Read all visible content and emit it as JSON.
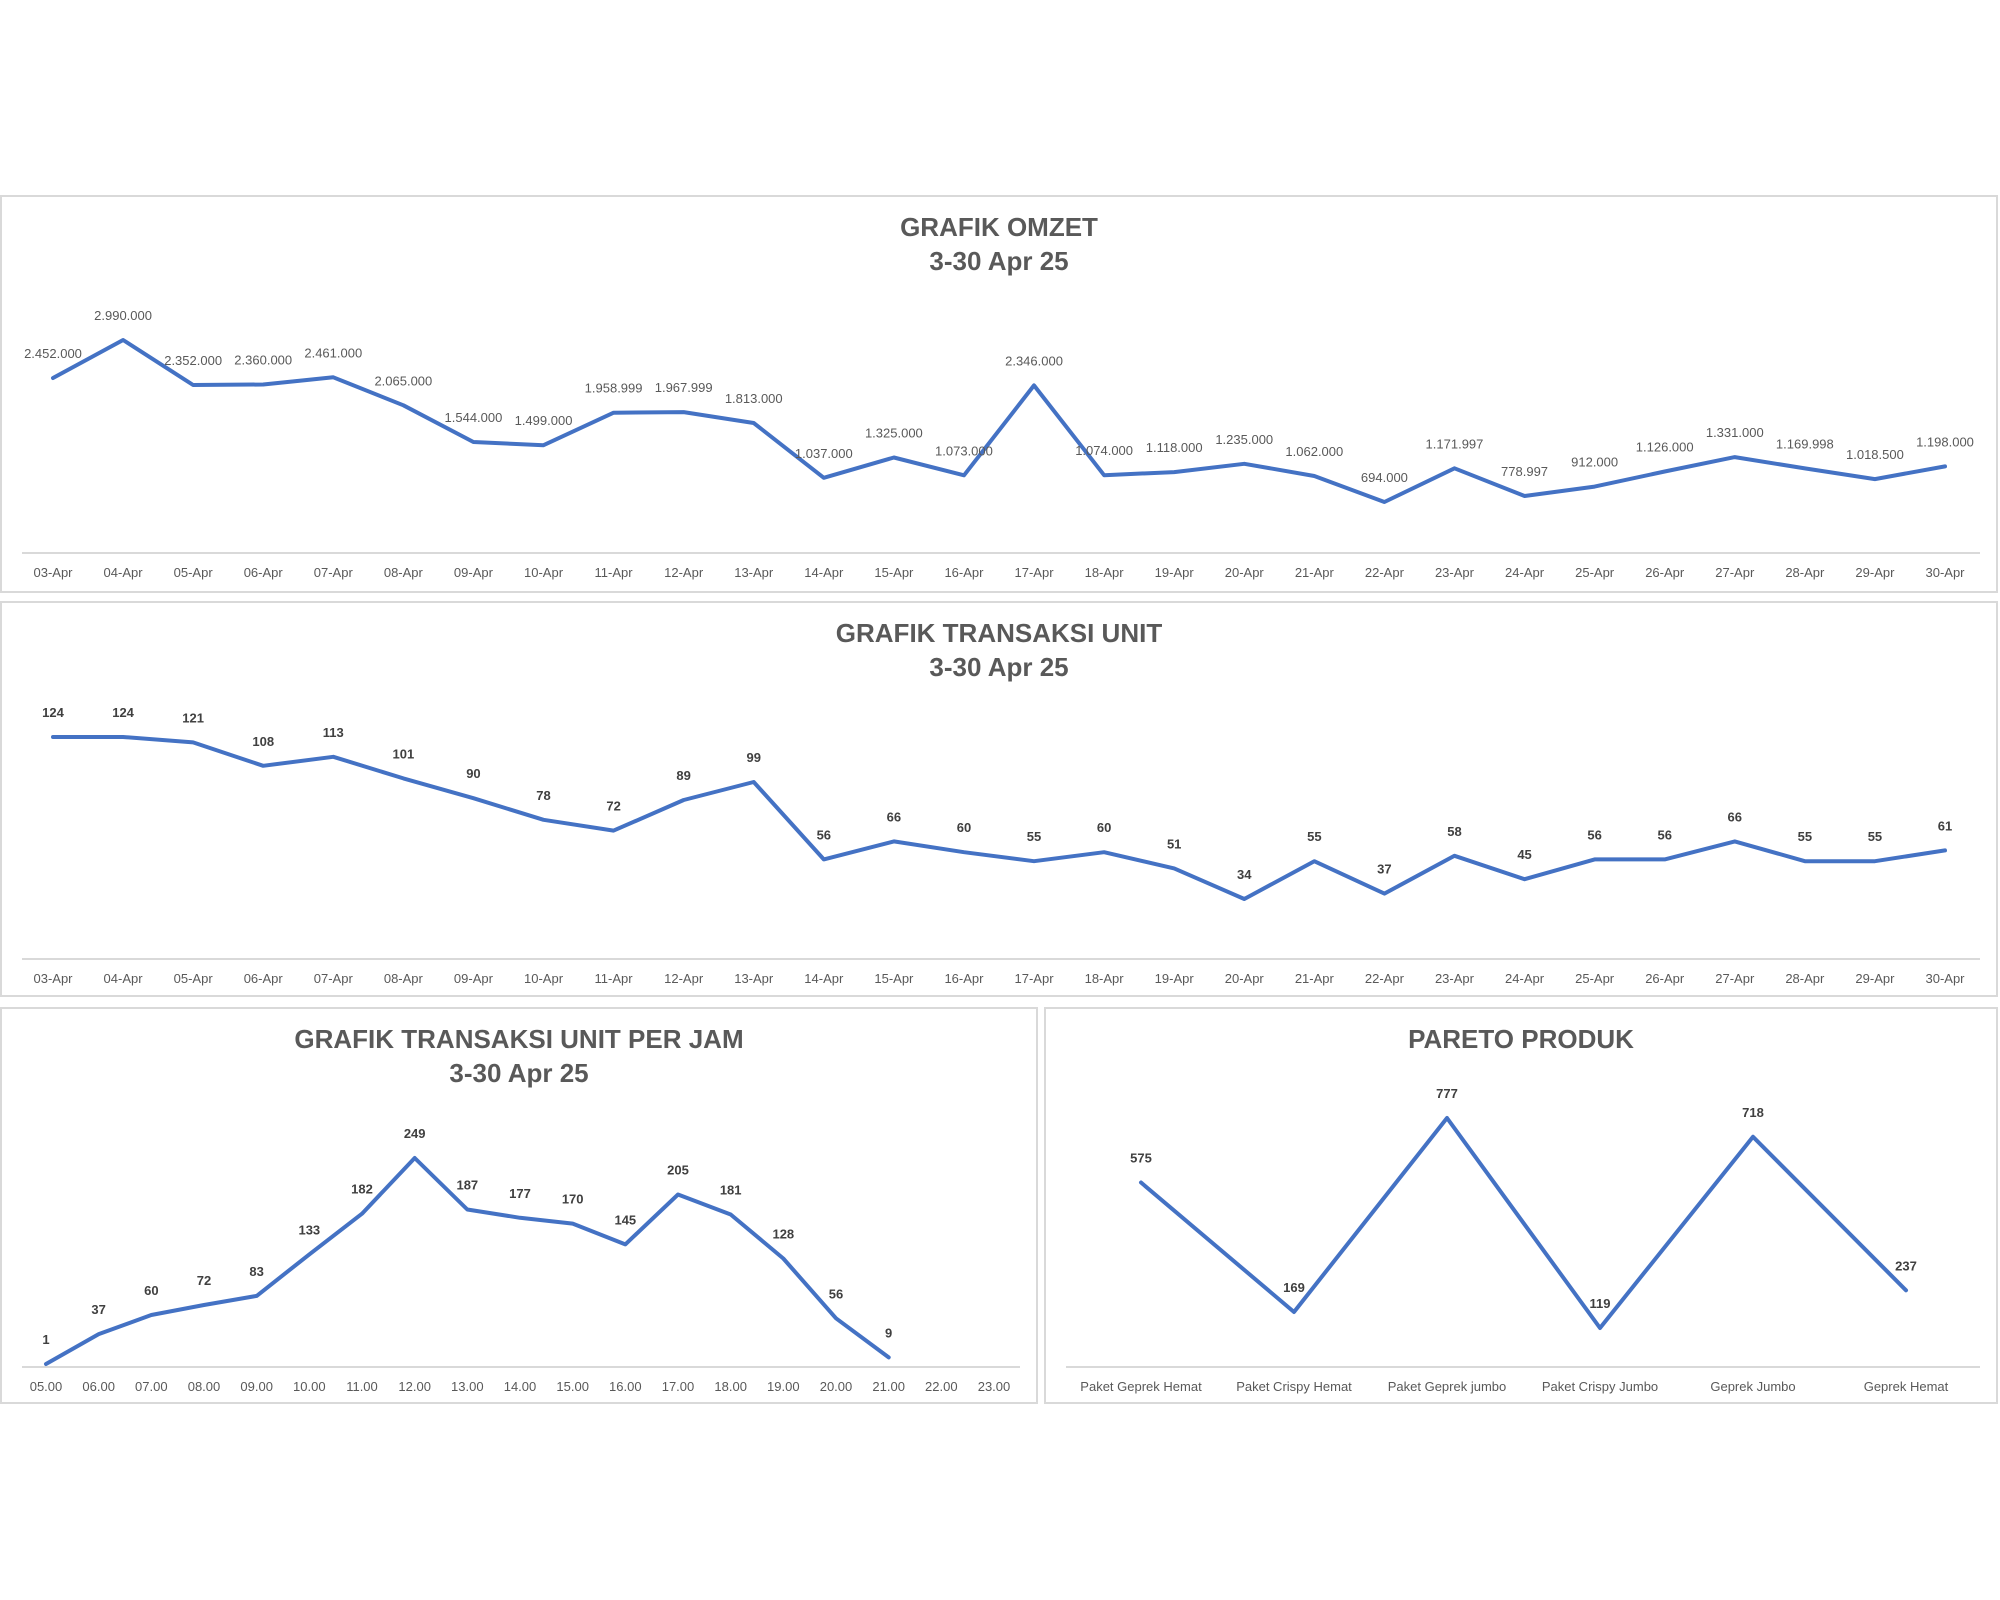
{
  "colors": {
    "line": "#4472c4",
    "text": "#595959",
    "border": "#d9d9d9",
    "axis": "#d9d9d9"
  },
  "chart_data": [
    {
      "id": "omzet",
      "type": "line",
      "title": "GRAFIK OMZET",
      "subtitle": "3-30 Apr 25",
      "label_style": "normal",
      "categories": [
        "03-Apr",
        "04-Apr",
        "05-Apr",
        "06-Apr",
        "07-Apr",
        "08-Apr",
        "09-Apr",
        "10-Apr",
        "11-Apr",
        "12-Apr",
        "13-Apr",
        "14-Apr",
        "15-Apr",
        "16-Apr",
        "17-Apr",
        "18-Apr",
        "19-Apr",
        "20-Apr",
        "21-Apr",
        "22-Apr",
        "23-Apr",
        "24-Apr",
        "25-Apr",
        "26-Apr",
        "27-Apr",
        "28-Apr",
        "29-Apr",
        "30-Apr"
      ],
      "values": [
        2452000,
        2990000,
        2352000,
        2360000,
        2461000,
        2065000,
        1544000,
        1499000,
        1958999,
        1967999,
        1813000,
        1037000,
        1325000,
        1073000,
        2346000,
        1074000,
        1118000,
        1235000,
        1062000,
        694000,
        1171997,
        778997,
        912000,
        1126000,
        1331000,
        1169998,
        1018500,
        1198000
      ],
      "data_labels": [
        "2.452.000",
        "2.990.000",
        "2.352.000",
        "2.360.000",
        "2.461.000",
        "2.065.000",
        "1.544.000",
        "1.499.000",
        "1.958.999",
        "1.967.999",
        "1.813.000",
        "1.037.000",
        "1.325.000",
        "1.073.000",
        "2.346.000",
        "1.074.000",
        "1.118.000",
        "1.235.000",
        "1.062.000",
        "694.000",
        "1.171.997",
        "778.997",
        "912.000",
        "1.126.000",
        "1.331.000",
        "1.169.998",
        "1.018.500",
        "1.198.000"
      ],
      "xlabel": "",
      "ylabel": "",
      "legend": "none",
      "grid": false
    },
    {
      "id": "transaksi-unit",
      "type": "line",
      "title": "GRAFIK TRANSAKSI UNIT",
      "subtitle": "3-30 Apr 25",
      "label_style": "bold",
      "categories": [
        "03-Apr",
        "04-Apr",
        "05-Apr",
        "06-Apr",
        "07-Apr",
        "08-Apr",
        "09-Apr",
        "10-Apr",
        "11-Apr",
        "12-Apr",
        "13-Apr",
        "14-Apr",
        "15-Apr",
        "16-Apr",
        "17-Apr",
        "18-Apr",
        "19-Apr",
        "20-Apr",
        "21-Apr",
        "22-Apr",
        "23-Apr",
        "24-Apr",
        "25-Apr",
        "26-Apr",
        "27-Apr",
        "28-Apr",
        "29-Apr",
        "30-Apr"
      ],
      "values": [
        124,
        124,
        121,
        108,
        113,
        101,
        90,
        78,
        72,
        89,
        99,
        56,
        66,
        60,
        55,
        60,
        51,
        34,
        55,
        37,
        58,
        45,
        56,
        56,
        66,
        55,
        55,
        61
      ],
      "data_labels": [
        "124",
        "124",
        "121",
        "108",
        "113",
        "101",
        "90",
        "78",
        "72",
        "89",
        "99",
        "56",
        "66",
        "60",
        "55",
        "60",
        "51",
        "34",
        "55",
        "37",
        "58",
        "45",
        "56",
        "56",
        "66",
        "55",
        "55",
        "61"
      ],
      "xlabel": "",
      "ylabel": "",
      "legend": "none",
      "grid": false
    },
    {
      "id": "transaksi-per-jam",
      "type": "line",
      "title": "GRAFIK TRANSAKSI UNIT PER JAM",
      "subtitle": "3-30 Apr 25",
      "label_style": "bold",
      "categories": [
        "05.00",
        "06.00",
        "07.00",
        "08.00",
        "09.00",
        "10.00",
        "11.00",
        "12.00",
        "13.00",
        "14.00",
        "15.00",
        "16.00",
        "17.00",
        "18.00",
        "19.00",
        "20.00",
        "21.00",
        "22.00",
        "23.00"
      ],
      "values": [
        1,
        37,
        60,
        72,
        83,
        133,
        182,
        249,
        187,
        177,
        170,
        145,
        205,
        181,
        128,
        56,
        9,
        null,
        null
      ],
      "data_labels": [
        "1",
        "37",
        "60",
        "72",
        "83",
        "133",
        "182",
        "249",
        "187",
        "177",
        "170",
        "145",
        "205",
        "181",
        "128",
        "56",
        "9",
        "",
        ""
      ],
      "xlabel": "",
      "ylabel": "",
      "legend": "none",
      "grid": false
    },
    {
      "id": "pareto-produk",
      "type": "line",
      "title": "PARETO PRODUK",
      "subtitle": "",
      "label_style": "bold",
      "categories": [
        "Paket Geprek Hemat",
        "Paket Crispy Hemat",
        "Paket Geprek jumbo",
        "Paket Crispy Jumbo",
        "Geprek Jumbo",
        "Geprek Hemat"
      ],
      "values": [
        575,
        169,
        777,
        119,
        718,
        237
      ],
      "data_labels": [
        "575",
        "169",
        "777",
        "119",
        "718",
        "237"
      ],
      "xlabel": "",
      "ylabel": "",
      "legend": "none",
      "grid": false
    }
  ]
}
